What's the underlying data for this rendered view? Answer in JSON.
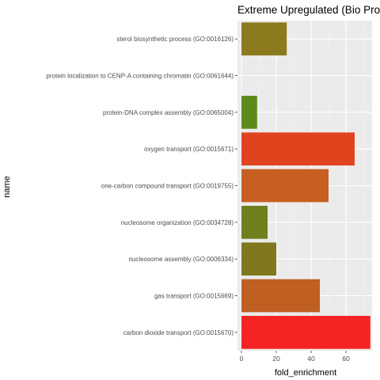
{
  "chart_data": {
    "type": "bar",
    "orientation": "horizontal",
    "title": "Extreme Upregulated (Bio Proc",
    "xlabel": "fold_enrichment",
    "ylabel": "name",
    "xlim": [
      0,
      75
    ],
    "xticks": [
      0,
      20,
      40,
      60
    ],
    "grid": true,
    "legend": "none",
    "panel_background": "#ebebeb",
    "categories": [
      "sterol biosynthetic process (GO:0016126)",
      "protein localization to CENP-A containing chromatin (GO:0061644)",
      "protein-DNA complex assembly (GO:0065004)",
      "oxygen transport (GO:0015671)",
      "one-carbon compound transport (GO:0019755)",
      "nucleosome organization (GO:0034728)",
      "nucleosome assembly (GO:0006334)",
      "gas transport (GO:0015669)",
      "carbon dioxide transport (GO:0015670)"
    ],
    "values": [
      26,
      0,
      9,
      65,
      50,
      15,
      20,
      45,
      74
    ],
    "colors": [
      "#8c7a1e",
      "#ebebeb",
      "#5e8a1a",
      "#e0441f",
      "#c85f22",
      "#6f7f1c",
      "#7f781e",
      "#c05f22",
      "#f52424"
    ]
  }
}
